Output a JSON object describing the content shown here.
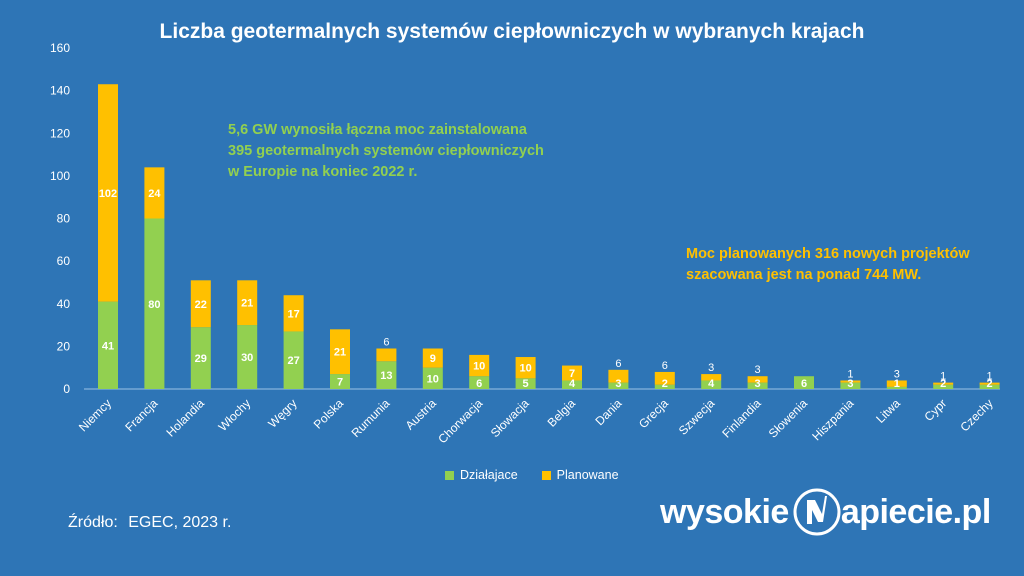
{
  "title": "Liczba geotermalnych systemów ciepłowniczych w wybranych krajach",
  "notes": {
    "green": [
      "5,6 GW wynosiła łączna moc zainstalowana",
      "395 geotermalnych systemów ciepłowniczych",
      "w Europie na koniec 2022 r."
    ],
    "yellow": [
      "Moc planowanych 316 nowych projektów",
      "szacowana jest na ponad 744 MW."
    ]
  },
  "source": {
    "label": "Źródło:",
    "text": "EGEC, 2023 r."
  },
  "brand": {
    "left": "wysokie",
    "right": "apiecie.pl",
    "logo_icon": "lightning-n-logo-icon"
  },
  "colors": {
    "background": "#2e75b6",
    "dzialajace": "#92d050",
    "planowane": "#ffc000"
  },
  "chart_data": {
    "type": "bar",
    "stacked": true,
    "categories": [
      "Niemcy",
      "Francja",
      "Holandia",
      "Włochy",
      "Węgry",
      "Polska",
      "Rumunia",
      "Austria",
      "Chorwacja",
      "Słowacja",
      "Belgia",
      "Dania",
      "Grecja",
      "Szwecja",
      "Finlandia",
      "Słowenia",
      "Hiszpania",
      "Litwa",
      "Cypr",
      "Czechy"
    ],
    "series": [
      {
        "name": "Działajace",
        "color": "#92d050",
        "values": [
          41,
          80,
          29,
          30,
          27,
          7,
          13,
          10,
          6,
          5,
          4,
          3,
          2,
          4,
          3,
          6,
          3,
          1,
          2,
          2
        ]
      },
      {
        "name": "Planowane",
        "color": "#ffc000",
        "values": [
          102,
          24,
          22,
          21,
          17,
          21,
          6,
          9,
          10,
          10,
          7,
          6,
          6,
          3,
          3,
          0,
          1,
          3,
          1,
          1
        ]
      }
    ],
    "value_labels": {
      "Działajace": [
        "41",
        "80",
        "29",
        "30",
        "27",
        "7",
        "13",
        "10",
        "6",
        "5",
        "4",
        "3",
        "2",
        "4",
        "3",
        "6",
        "3",
        "1",
        "2",
        "2"
      ],
      "Planowane": [
        "102",
        "24",
        "22",
        "21",
        "17",
        "21",
        "6",
        "9",
        "10",
        "10",
        "7",
        "6",
        "6",
        "3",
        "3",
        "",
        "1",
        "3",
        "1",
        "1"
      ]
    },
    "yticks": [
      "0",
      "20",
      "40",
      "60",
      "80",
      "100",
      "120",
      "140",
      "160"
    ],
    "ylim": [
      0,
      160
    ],
    "grid": false,
    "legend": "bottom-center"
  }
}
